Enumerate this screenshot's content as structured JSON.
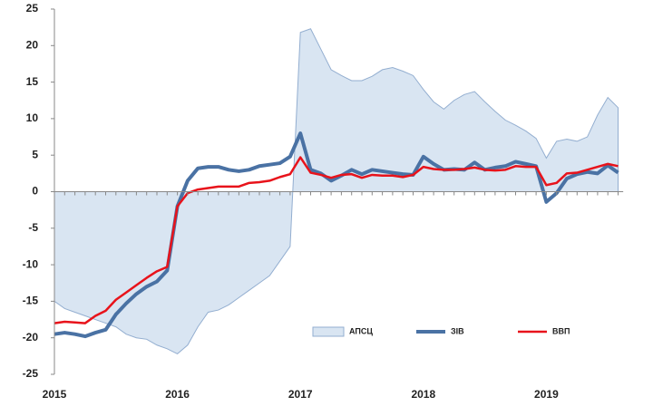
{
  "chart_data": {
    "type": "line",
    "categories": [
      "2015",
      null,
      null,
      null,
      null,
      null,
      null,
      null,
      null,
      null,
      null,
      null,
      "2016",
      null,
      null,
      null,
      null,
      null,
      null,
      null,
      null,
      null,
      null,
      null,
      "2017",
      null,
      null,
      null,
      null,
      null,
      null,
      null,
      null,
      null,
      null,
      null,
      "2018",
      null,
      null,
      null,
      null,
      null,
      null,
      null,
      null,
      null,
      null,
      null,
      "2019",
      null,
      null,
      null,
      null,
      null,
      null,
      null
    ],
    "series": [
      {
        "name": "АПСЦ",
        "kind": "area",
        "color": "#d9e5f2",
        "values": [
          -15,
          -16,
          -16.5,
          -17,
          -17.5,
          -18,
          -18.5,
          -19.5,
          -20,
          -20.2,
          -21,
          -21.5,
          -22.2,
          -21,
          -18.5,
          -16.5,
          -16.2,
          -15.5,
          -14.5,
          -13.5,
          -12.5,
          -11.5,
          -9.5,
          -7.5,
          21.8,
          22.3,
          19.5,
          16.7,
          15.9,
          15.2,
          15.2,
          15.8,
          16.7,
          17,
          16.5,
          15.9,
          14,
          12.3,
          11.3,
          12.5,
          13.3,
          13.7,
          12.3,
          11,
          9.8,
          9.1,
          8.3,
          7.3,
          4.6,
          6.9,
          7.2,
          6.9,
          7.5,
          10.5,
          12.9,
          11.5
        ]
      },
      {
        "name": "ЗІВ",
        "kind": "line",
        "color": "#4a72a4",
        "values": [
          -19.5,
          -19.3,
          -19.5,
          -19.8,
          -19.3,
          -18.9,
          -16.8,
          -15.3,
          -14,
          -13,
          -12.3,
          -10.8,
          -2,
          1.5,
          3.2,
          3.4,
          3.4,
          3,
          2.8,
          3,
          3.5,
          3.7,
          3.9,
          4.8,
          8,
          3,
          2.5,
          1.5,
          2.2,
          3,
          2.4,
          3,
          2.8,
          2.6,
          2.4,
          2.3,
          4.8,
          3.8,
          3,
          3.1,
          3,
          4,
          3,
          3.3,
          3.5,
          4.1,
          3.8,
          3.5,
          -1.4,
          -0.2,
          1.8,
          2.4,
          2.7,
          2.5,
          3.6,
          2.6
        ]
      },
      {
        "name": "ВВП",
        "kind": "line",
        "color": "#e8131b",
        "values": [
          -18,
          -17.8,
          -17.9,
          -18,
          -17,
          -16.3,
          -14.8,
          -13.8,
          -12.8,
          -11.8,
          -10.9,
          -10.3,
          -2,
          -0.2,
          0.3,
          0.5,
          0.7,
          0.7,
          0.7,
          1.2,
          1.3,
          1.5,
          2,
          2.4,
          4.7,
          2.6,
          2.3,
          1.9,
          2.3,
          2.4,
          1.9,
          2.3,
          2.2,
          2.2,
          2,
          2.3,
          3.4,
          3.1,
          3,
          3,
          3.1,
          3.3,
          3,
          2.9,
          3,
          3.5,
          3.4,
          3.4,
          0.9,
          1.2,
          2.5,
          2.6,
          3,
          3.4,
          3.8,
          3.5
        ]
      }
    ],
    "ylim": [
      -25,
      25
    ],
    "yticks": [
      -25,
      -20,
      -15,
      -10,
      -5,
      0,
      5,
      10,
      15,
      20,
      25
    ],
    "grid": false,
    "legend": "lower right"
  }
}
